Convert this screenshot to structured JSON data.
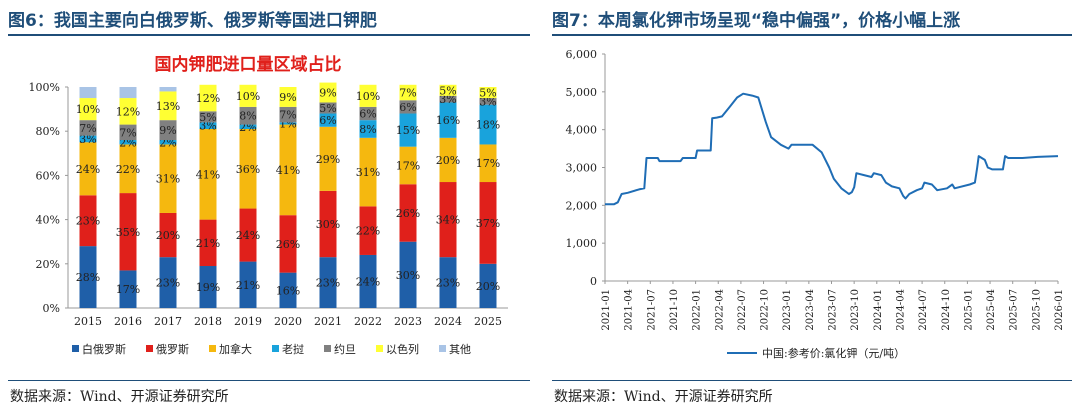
{
  "left": {
    "figure_title": "图6：我国主要向白俄罗斯、俄罗斯等国进口钾肥",
    "source": "数据来源：Wind、开源证券研究所"
  },
  "right": {
    "figure_title": "图7：本周氯化钾市场呈现“稳中偏强”，价格小幅上涨",
    "source": "数据来源：Wind、开源证券研究所"
  },
  "chart_data": [
    {
      "type": "bar",
      "stacked": true,
      "percent": true,
      "title": "国内钾肥进口量区域占比",
      "categories": [
        "2015",
        "2016",
        "2017",
        "2018",
        "2019",
        "2020",
        "2021",
        "2022",
        "2023",
        "2024",
        "2025"
      ],
      "y_ticks": [
        "0%",
        "20%",
        "40%",
        "60%",
        "80%",
        "100%"
      ],
      "ylim": [
        0,
        100
      ],
      "series": [
        {
          "name": "白俄罗斯",
          "color": "#1f5fa8",
          "values": [
            28,
            17,
            23,
            19,
            21,
            16,
            23,
            24,
            30,
            23,
            20
          ],
          "labels": [
            "28%",
            "17%",
            "23%",
            "19%",
            "21%",
            "16%",
            "23%",
            "24%",
            "30%",
            "23%",
            "20%"
          ]
        },
        {
          "name": "俄罗斯",
          "color": "#e0201b",
          "values": [
            23,
            35,
            20,
            21,
            24,
            26,
            30,
            22,
            26,
            34,
            37
          ],
          "labels": [
            "23%",
            "35%",
            "20%",
            "21%",
            "24%",
            "26%",
            "30%",
            "22%",
            "26%",
            "34%",
            "37%"
          ]
        },
        {
          "name": "加拿大",
          "color": "#f5b80f",
          "values": [
            24,
            22,
            31,
            41,
            36,
            41,
            29,
            31,
            17,
            20,
            17
          ],
          "labels": [
            "24%",
            "22%",
            "31%",
            "41%",
            "36%",
            "41%",
            "29%",
            "31%",
            "17%",
            "20%",
            "17%"
          ]
        },
        {
          "name": "老挝",
          "color": "#19a3dc",
          "values": [
            3,
            2,
            2,
            3,
            2,
            1,
            6,
            8,
            15,
            16,
            18
          ],
          "labels": [
            "3%",
            "2%",
            "2%",
            "3%",
            "2%",
            "1%",
            "6%",
            "8%",
            "15%",
            "16%",
            "18%"
          ]
        },
        {
          "name": "约旦",
          "color": "#808080",
          "values": [
            7,
            7,
            9,
            5,
            8,
            7,
            5,
            6,
            6,
            3,
            3
          ],
          "labels": [
            "7%",
            "7%",
            "9%",
            "5%",
            "8%",
            "7%",
            "5%",
            "6%",
            "6%",
            "3%",
            "3%"
          ]
        },
        {
          "name": "以色列",
          "color": "#ffff33",
          "values": [
            10,
            12,
            13,
            12,
            10,
            9,
            9,
            10,
            7,
            5,
            5
          ],
          "labels": [
            "10%",
            "12%",
            "13%",
            "12%",
            "10%",
            "9%",
            "9%",
            "10%",
            "7%",
            "5%",
            "5%"
          ]
        },
        {
          "name": "其他",
          "color": "#a9c4e6",
          "values": [
            5,
            5,
            2,
            0,
            0,
            0,
            0,
            0,
            0,
            0,
            0
          ],
          "labels": [
            "",
            "",
            "",
            "",
            "",
            "",
            "",
            "",
            "",
            "",
            ""
          ]
        }
      ]
    },
    {
      "type": "line",
      "title": "",
      "ylim": [
        0,
        6000
      ],
      "y_ticks": [
        "0",
        "1,000",
        "2,000",
        "3,000",
        "4,000",
        "5,000",
        "6,000"
      ],
      "x_ticks": [
        "2021-01",
        "2021-04",
        "2021-07",
        "2021-10",
        "2022-01",
        "2022-04",
        "2022-07",
        "2022-10",
        "2023-01",
        "2023-04",
        "2023-07",
        "2023-10",
        "2024-01",
        "2024-04",
        "2024-07",
        "2024-10",
        "2025-01",
        "2025-04",
        "2025-07",
        "2025-10",
        "2026-01"
      ],
      "x_range": [
        0,
        60
      ],
      "series": [
        {
          "name": "中国:参考价:氯化钾（元/吨）",
          "color": "#1f6db5",
          "points": [
            [
              0,
              2030
            ],
            [
              1.2,
              2030
            ],
            [
              1.7,
              2080
            ],
            [
              2.2,
              2300
            ],
            [
              3,
              2330
            ],
            [
              4.5,
              2420
            ],
            [
              5.2,
              2450
            ],
            [
              5.5,
              3250
            ],
            [
              7,
              3250
            ],
            [
              7.2,
              3170
            ],
            [
              10,
              3170
            ],
            [
              10.3,
              3250
            ],
            [
              12,
              3250
            ],
            [
              12.2,
              3450
            ],
            [
              14,
              3450
            ],
            [
              14.2,
              4300
            ],
            [
              14.8,
              4320
            ],
            [
              15.5,
              4350
            ],
            [
              16.5,
              4600
            ],
            [
              17.5,
              4850
            ],
            [
              18.3,
              4950
            ],
            [
              19.5,
              4900
            ],
            [
              20.3,
              4850
            ],
            [
              21.3,
              4200
            ],
            [
              22,
              3800
            ],
            [
              23.3,
              3600
            ],
            [
              24.3,
              3500
            ],
            [
              24.7,
              3600
            ],
            [
              27.5,
              3600
            ],
            [
              28.7,
              3400
            ],
            [
              29.7,
              3000
            ],
            [
              30.3,
              2700
            ],
            [
              31.3,
              2450
            ],
            [
              32.3,
              2300
            ],
            [
              32.7,
              2350
            ],
            [
              33,
              2480
            ],
            [
              33.3,
              2850
            ],
            [
              34.3,
              2800
            ],
            [
              35.3,
              2750
            ],
            [
              35.6,
              2850
            ],
            [
              36.6,
              2800
            ],
            [
              37.2,
              2600
            ],
            [
              38,
              2500
            ],
            [
              39,
              2450
            ],
            [
              39.5,
              2250
            ],
            [
              39.8,
              2180
            ],
            [
              40.3,
              2300
            ],
            [
              41.3,
              2400
            ],
            [
              42,
              2450
            ],
            [
              42.3,
              2600
            ],
            [
              43.3,
              2550
            ],
            [
              44,
              2400
            ],
            [
              45.3,
              2450
            ],
            [
              46,
              2550
            ],
            [
              46.3,
              2450
            ],
            [
              48.3,
              2550
            ],
            [
              49,
              2600
            ],
            [
              49.3,
              3000
            ],
            [
              49.5,
              3300
            ],
            [
              50.3,
              3200
            ],
            [
              50.7,
              3000
            ],
            [
              51.3,
              2950
            ],
            [
              52.7,
              2950
            ],
            [
              53,
              3300
            ],
            [
              53.4,
              3250
            ],
            [
              55.3,
              3250
            ],
            [
              57.3,
              3280
            ],
            [
              60,
              3300
            ]
          ]
        }
      ]
    }
  ]
}
